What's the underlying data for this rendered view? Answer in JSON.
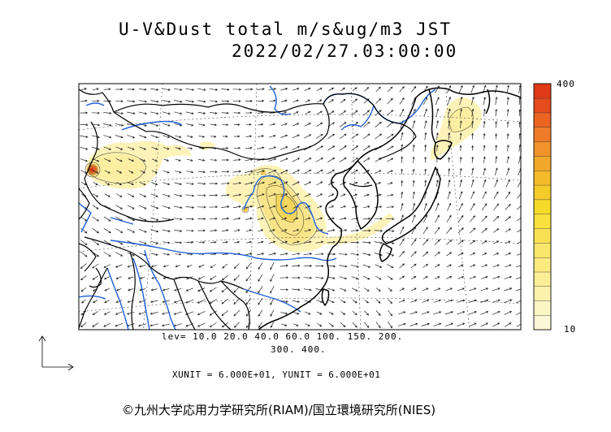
{
  "title": {
    "line1": "U-V&Dust total m/s&ug/m3 JST",
    "line2": "2022/02/27.03:00:00"
  },
  "legend": {
    "levels_line1": "lev= 10.0 20.0 40.0 60.0 100. 150. 200.",
    "levels_line2": "300. 400.",
    "colorbar_max": "400",
    "colorbar_min": "10",
    "colors": [
      "#fdf7d8",
      "#fcf5c4",
      "#fcf2ad",
      "#fbee96",
      "#faea80",
      "#f9e66a",
      "#f8e254",
      "#f7df3e",
      "#f6da2a",
      "#f5cb2a",
      "#f4ba2a",
      "#f3a72a",
      "#f1922a",
      "#ee7c28",
      "#ea6422",
      "#e44c1c",
      "#de3a16"
    ]
  },
  "units": "XUNIT = 6.000E+01, YUNIT = 6.000E+01",
  "copyright": "©九州大学応用力学研究所(RIAM)/国立環境研究所(NIES)",
  "style": {
    "coast": "#000000",
    "river": "#1f5fd6",
    "vector": "#222222",
    "dust_light": "#fdf3b8",
    "dust_mid": "#f6e07a",
    "dust_high": "#e8702a"
  }
}
